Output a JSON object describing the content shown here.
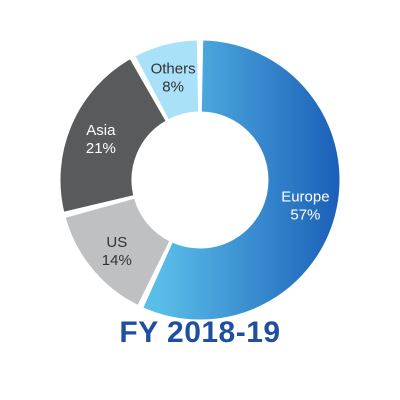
{
  "chart_data": {
    "type": "pie",
    "title": "FY 2018-19",
    "donut": true,
    "slices": [
      {
        "label": "Europe",
        "value": 57,
        "value_text": "57%",
        "color": "#1b5fb8",
        "color_light": "#59bde8",
        "text_color": "#ffffff"
      },
      {
        "label": "US",
        "value": 14,
        "value_text": "14%",
        "color": "#bfc0c2",
        "text_color": "#333333"
      },
      {
        "label": "Asia",
        "value": 21,
        "value_text": "21%",
        "color": "#595a5c",
        "text_color": "#ffffff"
      },
      {
        "label": "Others",
        "value": 8,
        "value_text": "8%",
        "color": "#a9e1f8",
        "text_color": "#333333"
      }
    ]
  }
}
